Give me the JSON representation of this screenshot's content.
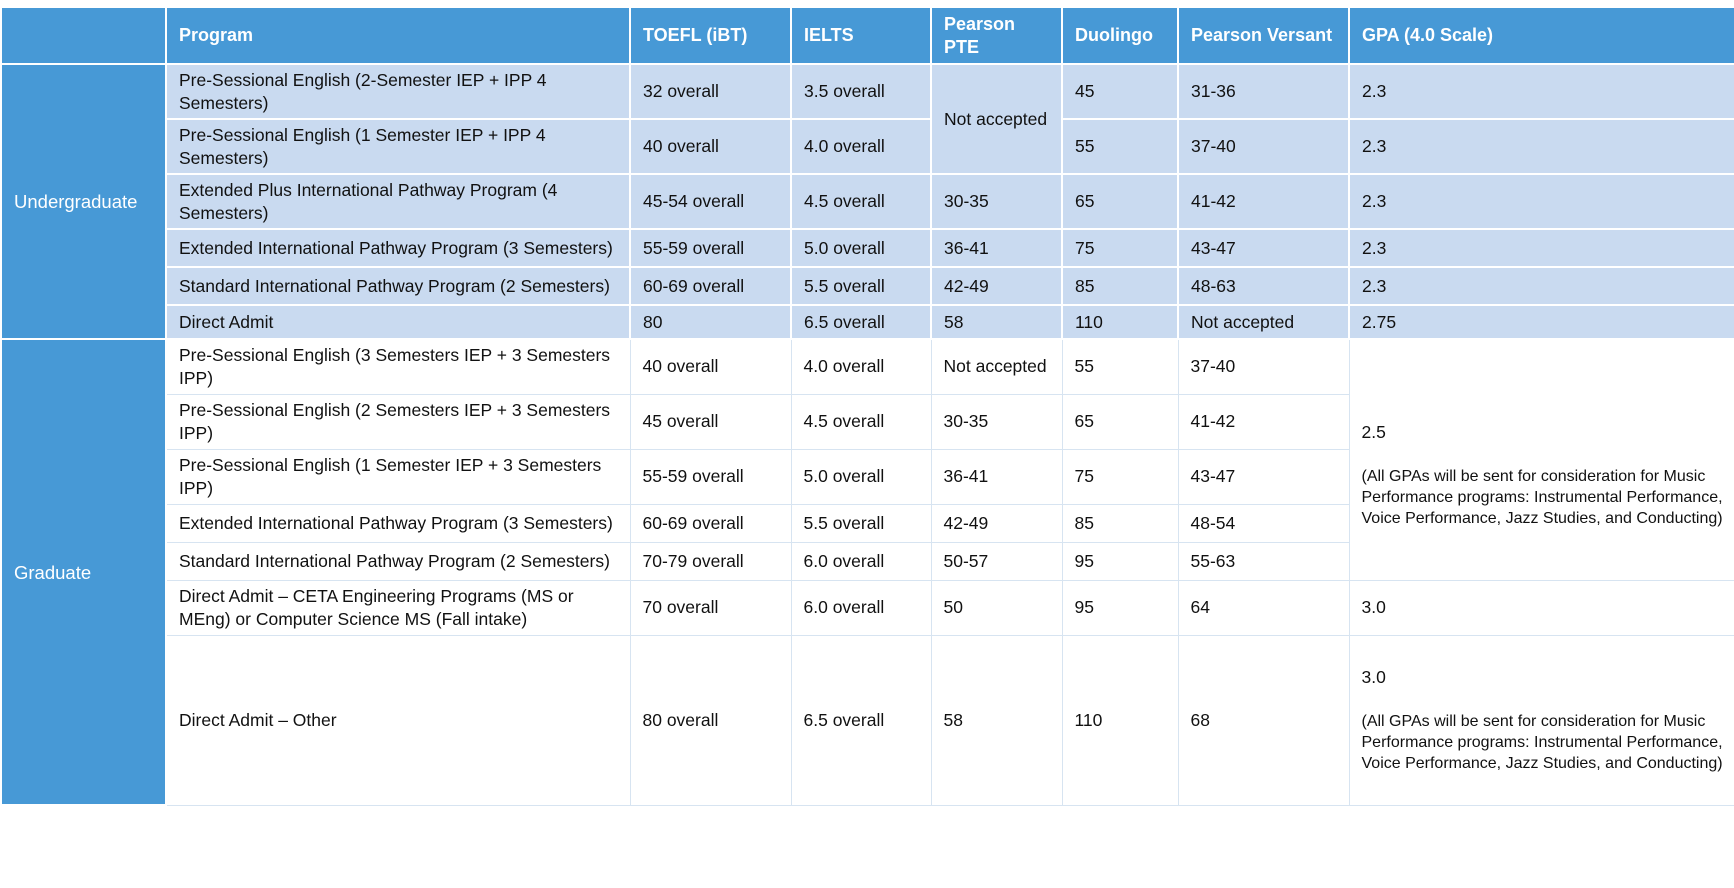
{
  "headers": {
    "level": "",
    "program": "Program",
    "toefl": "TOEFL (iBT)",
    "ielts": "IELTS",
    "pte": "Pearson PTE",
    "duolingo": "Duolingo",
    "versant": "Pearson Versant",
    "gpa": "GPA (4.0 Scale)"
  },
  "undergraduate": {
    "label": "Undergraduate",
    "pte_not_accepted": "Not accepted",
    "rows": [
      {
        "program": "Pre-Sessional English (2-Semester IEP + IPP 4 Semesters)",
        "toefl": "32 overall",
        "ielts": "3.5 overall",
        "duolingo": "45",
        "versant": "31-36",
        "gpa": "2.3"
      },
      {
        "program": "Pre-Sessional English (1 Semester IEP + IPP 4 Semesters)",
        "toefl": "40 overall",
        "ielts": "4.0 overall",
        "duolingo": "55",
        "versant": "37-40",
        "gpa": "2.3"
      },
      {
        "program": "Extended Plus International Pathway Program (4 Semesters)",
        "toefl": "45-54 overall",
        "ielts": "4.5 overall",
        "pte": "30-35",
        "duolingo": "65",
        "versant": "41-42",
        "gpa": "2.3"
      },
      {
        "program": "Extended International Pathway Program (3 Semesters)",
        "toefl": "55-59 overall",
        "ielts": "5.0 overall",
        "pte": "36-41",
        "duolingo": "75",
        "versant": "43-47",
        "gpa": "2.3"
      },
      {
        "program": "Standard International Pathway Program (2 Semesters)",
        "toefl": "60-69 overall",
        "ielts": "5.5 overall",
        "pte": "42-49",
        "duolingo": "85",
        "versant": "48-63",
        "gpa": "2.3"
      },
      {
        "program": "Direct Admit",
        "toefl": "80",
        "ielts": "6.5 overall",
        "pte": "58",
        "duolingo": "110",
        "versant": "Not accepted",
        "gpa": "2.75"
      }
    ]
  },
  "graduate": {
    "label": "Graduate",
    "gpa_group": {
      "value": "2.5",
      "note": "(All GPAs will be sent for consideration for Music Performance programs: Instrumental Performance, Voice Performance, Jazz Studies, and Conducting)"
    },
    "rows": [
      {
        "program": "Pre-Sessional English (3 Semesters IEP + 3 Semesters IPP)",
        "toefl": "40 overall",
        "ielts": "4.0 overall",
        "pte": "Not accepted",
        "duolingo": "55",
        "versant": "37-40"
      },
      {
        "program": "Pre-Sessional English (2 Semesters IEP + 3 Semesters IPP)",
        "toefl": "45 overall",
        "ielts": "4.5 overall",
        "pte": "30-35",
        "duolingo": "65",
        "versant": "41-42"
      },
      {
        "program": "Pre-Sessional English (1 Semester IEP + 3 Semesters IPP)",
        "toefl": "55-59 overall",
        "ielts": "5.0 overall",
        "pte": "36-41",
        "duolingo": "75",
        "versant": "43-47"
      },
      {
        "program": "Extended International Pathway Program (3 Semesters)",
        "toefl": "60-69 overall",
        "ielts": "5.5 overall",
        "pte": "42-49",
        "duolingo": "85",
        "versant": "48-54"
      },
      {
        "program": "Standard International Pathway Program (2 Semesters)",
        "toefl": "70-79 overall",
        "ielts": "6.0 overall",
        "pte": "50-57",
        "duolingo": "95",
        "versant": "55-63"
      },
      {
        "program": "Direct Admit – CETA Engineering Programs (MS or MEng) or Computer Science MS (Fall intake)",
        "toefl": "70 overall",
        "ielts": "6.0 overall",
        "pte": "50",
        "duolingo": "95",
        "versant": "64",
        "gpa": "3.0"
      },
      {
        "program": "Direct Admit – Other",
        "toefl": "80 overall",
        "ielts": "6.5 overall",
        "pte": "58",
        "duolingo": "110",
        "versant": "68",
        "gpa": "3.0",
        "gpa_note": "(All GPAs will be sent for consideration for Music Performance programs: Instrumental Performance, Voice Performance, Jazz Studies, and Conducting)"
      }
    ]
  }
}
